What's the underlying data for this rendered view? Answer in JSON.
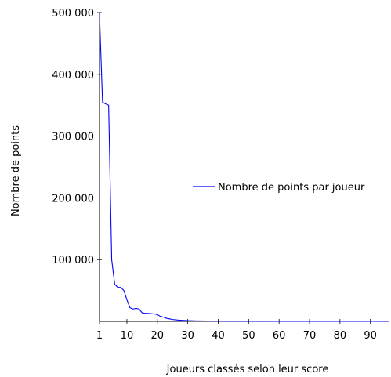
{
  "chart_data": {
    "type": "line",
    "xlabel": "Joueurs classés selon leur score",
    "ylabel": "Nombre de points",
    "xlim": [
      1,
      96
    ],
    "ylim": [
      0,
      500000
    ],
    "x_ticks": [
      1,
      10,
      20,
      30,
      40,
      50,
      60,
      70,
      80,
      90
    ],
    "x_tick_labels": [
      "1",
      "10",
      "20",
      "30",
      "40",
      "50",
      "60",
      "70",
      "80",
      "90"
    ],
    "y_ticks": [
      100000,
      200000,
      300000,
      400000,
      500000
    ],
    "y_tick_labels": [
      "100 000",
      "200 000",
      "300 000",
      "400 000",
      "500 000"
    ],
    "legend_position": "right",
    "series": [
      {
        "name": "Nombre de points par joueur",
        "color": "#0000ff",
        "x": [
          1,
          2,
          3,
          4,
          5,
          6,
          7,
          8,
          9,
          10,
          11,
          12,
          13,
          14,
          15,
          16,
          17,
          18,
          19,
          20,
          21,
          22,
          23,
          24,
          25,
          27,
          30,
          33,
          36,
          40,
          45,
          50,
          60,
          70,
          80,
          90,
          96
        ],
        "y": [
          497000,
          355000,
          352000,
          350000,
          100000,
          60000,
          55000,
          55000,
          50000,
          35000,
          22000,
          20000,
          21000,
          20000,
          14000,
          13000,
          13000,
          12500,
          12000,
          11000,
          8000,
          7000,
          5000,
          4000,
          3000,
          2000,
          1200,
          800,
          500,
          300,
          200,
          150,
          100,
          80,
          60,
          50,
          40
        ]
      }
    ]
  }
}
